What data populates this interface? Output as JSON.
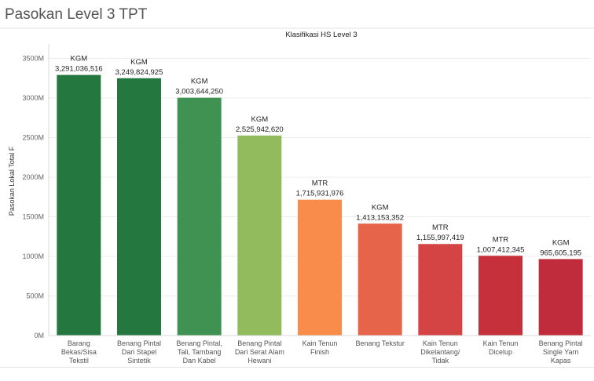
{
  "page": {
    "title": "Pasokan Level 3 TPT"
  },
  "chart_data": {
    "type": "bar",
    "title": "Klasifikasi HS Level 3",
    "xlabel": "",
    "ylabel": "Pasokan Lokal Total F",
    "ylim": [
      0,
      3650000000
    ],
    "yticks": [
      0,
      500000000,
      1000000000,
      1500000000,
      2000000000,
      2500000000,
      3000000000,
      3500000000
    ],
    "ytick_labels": [
      "0M",
      "500M",
      "1000M",
      "1500M",
      "2000M",
      "2500M",
      "3000M",
      "3500M"
    ],
    "grid": true,
    "categories": [
      [
        "Barang",
        "Bekas/Sisa",
        "Tekstil"
      ],
      [
        "Benang Pintal",
        "Dari Stapel",
        "Sintetik"
      ],
      [
        "Benang Pintal,",
        "Tali, Tambang",
        "Dan Kabel"
      ],
      [
        "Benang Pintal",
        "Dari Serat Alam",
        "Hewani"
      ],
      [
        "Kain Tenun",
        "Finish"
      ],
      [
        "Benang Tekstur"
      ],
      [
        "Kain Tenun",
        "Dikelantang/",
        "Tidak"
      ],
      [
        "Kain Tenun",
        "Dicelup"
      ],
      [
        "Benang Pintal",
        "Single Yarn",
        "Kapas"
      ]
    ],
    "values": [
      3291036516,
      3249824925,
      3003644250,
      2525942620,
      1715931976,
      1413153352,
      1155997419,
      1007412345,
      965605195
    ],
    "value_labels": [
      "3,291,036,516",
      "3,249,824,925",
      "3,003,644,250",
      "2,525,942,620",
      "1,715,931,976",
      "1,413,153,352",
      "1,155,997,419",
      "1,007,412,345",
      "965,605,195"
    ],
    "units": [
      "KGM",
      "KGM",
      "KGM",
      "KGM",
      "MTR",
      "KGM",
      "MTR",
      "MTR",
      "KGM"
    ],
    "colors": [
      "#23773f",
      "#23773f",
      "#3f9252",
      "#92bb5d",
      "#f98b4b",
      "#e6644a",
      "#d54444",
      "#c5303b",
      "#c12c3c"
    ]
  }
}
